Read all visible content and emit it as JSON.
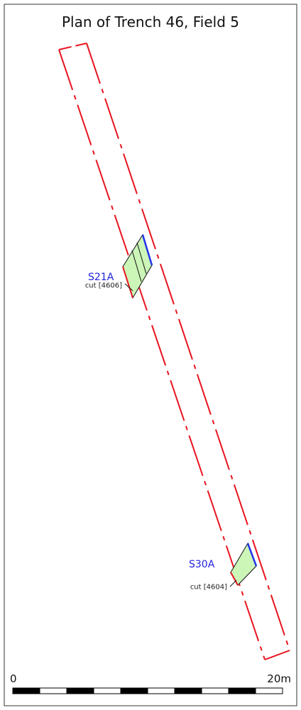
{
  "title": "Plan of Trench 46, Field 5",
  "sections": [
    {
      "label": "S21A",
      "cut": "cut [4606]"
    },
    {
      "label": "S30A",
      "cut": "cut [4604]"
    }
  ],
  "scale": {
    "start": "0",
    "end": "20m"
  }
}
